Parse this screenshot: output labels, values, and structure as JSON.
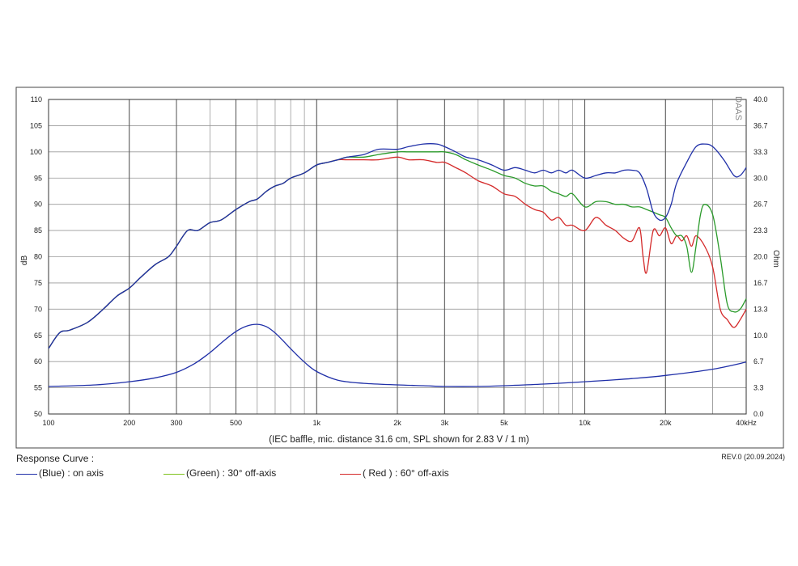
{
  "chart_data": {
    "type": "line",
    "title": "",
    "caption": "(IEC baffle, mic. distance 31.6 cm, SPL shown for 2.83 V / 1 m)",
    "watermark": "DAAS",
    "xlabel": "",
    "ylabel": "dB",
    "y2label": "Ohm",
    "x_scale": "log",
    "xlim": [
      100,
      40000
    ],
    "ylim": [
      50,
      110
    ],
    "y2lim": [
      0,
      40
    ],
    "grid": true,
    "x_ticks": [
      {
        "v": 100,
        "label": "100"
      },
      {
        "v": 200,
        "label": "200"
      },
      {
        "v": 300,
        "label": "300"
      },
      {
        "v": 500,
        "label": "500"
      },
      {
        "v": 1000,
        "label": "1k"
      },
      {
        "v": 2000,
        "label": "2k"
      },
      {
        "v": 3000,
        "label": "3k"
      },
      {
        "v": 5000,
        "label": "5k"
      },
      {
        "v": 10000,
        "label": "10k"
      },
      {
        "v": 20000,
        "label": "20k"
      },
      {
        "v": 40000,
        "label": "40kHz"
      }
    ],
    "y_ticks": [
      "50",
      "55",
      "60",
      "65",
      "70",
      "75",
      "80",
      "85",
      "90",
      "95",
      "100",
      "105",
      "110"
    ],
    "y2_ticks": [
      "0.0",
      "3.3",
      "6.7",
      "10.0",
      "13.3",
      "16.7",
      "20.0",
      "23.3",
      "26.7",
      "30.0",
      "33.3",
      "36.7",
      "40.0"
    ],
    "series": [
      {
        "name": "(Blue)  : on axis",
        "color": "#1f2fa8",
        "axis": "left",
        "x": [
          100,
          110,
          120,
          140,
          160,
          180,
          200,
          220,
          250,
          280,
          300,
          330,
          360,
          400,
          440,
          500,
          560,
          600,
          650,
          700,
          750,
          800,
          900,
          1000,
          1100,
          1200,
          1300,
          1500,
          1700,
          2000,
          2200,
          2500,
          2800,
          3000,
          3300,
          3600,
          4000,
          4500,
          5000,
          5500,
          6000,
          6500,
          7000,
          7500,
          8000,
          8500,
          9000,
          10000,
          11000,
          12000,
          13000,
          14000,
          15000,
          16000,
          17000,
          18000,
          19000,
          20000,
          21000,
          22000,
          24000,
          26000,
          28000,
          30000,
          33000,
          36000,
          38000,
          40000
        ],
        "values": [
          62.5,
          65.5,
          66,
          67.5,
          70,
          72.5,
          74,
          76,
          78.5,
          80,
          82,
          85,
          85,
          86.5,
          87,
          89,
          90.5,
          91,
          92.5,
          93.5,
          94,
          95,
          96,
          97.5,
          98,
          98.5,
          99,
          99.5,
          100.5,
          100.5,
          101,
          101.5,
          101.5,
          101,
          100,
          99,
          98.5,
          97.5,
          96.5,
          97,
          96.5,
          96,
          96.5,
          96,
          96.5,
          96,
          96.5,
          95,
          95.5,
          96,
          96,
          96.5,
          96.5,
          96,
          93,
          88.5,
          87,
          87.5,
          90,
          94,
          98,
          101,
          101.5,
          101,
          98.5,
          95.5,
          95.5,
          97
        ]
      },
      {
        "name": "(Green) : 30° off-axis",
        "color": "#2a9a2a",
        "axis": "left",
        "x": [
          100,
          110,
          120,
          140,
          160,
          180,
          200,
          220,
          250,
          280,
          300,
          330,
          360,
          400,
          440,
          500,
          560,
          600,
          650,
          700,
          750,
          800,
          900,
          1000,
          1100,
          1200,
          1300,
          1500,
          1700,
          2000,
          2200,
          2500,
          2800,
          3000,
          3300,
          3600,
          4000,
          4500,
          5000,
          5500,
          6000,
          6500,
          7000,
          7500,
          8000,
          8500,
          9000,
          10000,
          11000,
          12000,
          13000,
          14000,
          15000,
          16000,
          17000,
          18000,
          19000,
          20000,
          21000,
          22000,
          23000,
          24000,
          25000,
          26000,
          27000,
          28000,
          30000,
          32000,
          34000,
          36000,
          38000,
          40000
        ],
        "values": [
          62.5,
          65.5,
          66,
          67.5,
          70,
          72.5,
          74,
          76,
          78.5,
          80,
          82,
          85,
          85,
          86.5,
          87,
          89,
          90.5,
          91,
          92.5,
          93.5,
          94,
          95,
          96,
          97.5,
          98,
          98.5,
          99,
          99,
          99.5,
          100,
          100,
          100,
          100,
          100,
          99.5,
          98.5,
          97.5,
          96.5,
          95.5,
          95,
          94,
          93.5,
          93.5,
          92.5,
          92,
          91.5,
          92,
          89.5,
          90.5,
          90.5,
          90,
          90,
          89.5,
          89.5,
          89,
          88.5,
          88,
          87.5,
          85.5,
          84,
          84,
          82,
          77,
          82,
          88,
          90,
          88,
          80,
          71,
          69.5,
          70,
          72
        ]
      },
      {
        "name": "( Red ) : 60° off-axis",
        "color": "#d42a2a",
        "axis": "left",
        "x": [
          100,
          110,
          120,
          140,
          160,
          180,
          200,
          220,
          250,
          280,
          300,
          330,
          360,
          400,
          440,
          500,
          560,
          600,
          650,
          700,
          750,
          800,
          900,
          1000,
          1100,
          1200,
          1300,
          1500,
          1700,
          2000,
          2200,
          2500,
          2800,
          3000,
          3300,
          3600,
          4000,
          4500,
          5000,
          5500,
          6000,
          6500,
          7000,
          7500,
          8000,
          8500,
          9000,
          10000,
          11000,
          12000,
          13000,
          14000,
          15000,
          16000,
          16500,
          17000,
          18000,
          19000,
          20000,
          21000,
          22000,
          23000,
          24000,
          25000,
          26000,
          28000,
          30000,
          32000,
          34000,
          36000,
          38000,
          40000
        ],
        "values": [
          62.5,
          65.5,
          66,
          67.5,
          70,
          72.5,
          74,
          76,
          78.5,
          80,
          82,
          85,
          85,
          86.5,
          87,
          89,
          90.5,
          91,
          92.5,
          93.5,
          94,
          95,
          96,
          97.5,
          98,
          98.5,
          98.5,
          98.5,
          98.5,
          99,
          98.5,
          98.5,
          98,
          98,
          97,
          96,
          94.5,
          93.5,
          92,
          91.5,
          90,
          89,
          88.5,
          87,
          87.5,
          86,
          86,
          85,
          87.5,
          86,
          85,
          83.5,
          83,
          85.5,
          80,
          77,
          85,
          84,
          85.5,
          82.5,
          84,
          83,
          84,
          82,
          84,
          82,
          78,
          70,
          68,
          66.5,
          68,
          70
        ]
      },
      {
        "name": "impedance",
        "color": "#1f2fa8",
        "axis": "right",
        "x": [
          100,
          150,
          200,
          250,
          300,
          350,
          400,
          450,
          500,
          550,
          600,
          650,
          700,
          750,
          800,
          900,
          1000,
          1200,
          1500,
          2000,
          2500,
          3000,
          4000,
          5000,
          7000,
          10000,
          15000,
          20000,
          30000,
          40000
        ],
        "values": [
          3.5,
          3.7,
          4.1,
          4.6,
          5.3,
          6.4,
          7.8,
          9.3,
          10.5,
          11.2,
          11.4,
          11.1,
          10.3,
          9.3,
          8.3,
          6.6,
          5.4,
          4.3,
          3.9,
          3.7,
          3.6,
          3.5,
          3.5,
          3.6,
          3.8,
          4.1,
          4.5,
          4.9,
          5.7,
          6.6
        ]
      }
    ],
    "legend": {
      "title": "Response Curve :",
      "revision": "REV.0 (20.09.2024)",
      "items": [
        {
          "label": "(Blue)  : on axis",
          "color": "#1f2fa8"
        },
        {
          "label": "(Green) : 30° off-axis",
          "color": "#7fc21e"
        },
        {
          "label": "( Red ) : 60° off-axis",
          "color": "#d42a2a"
        }
      ]
    }
  }
}
